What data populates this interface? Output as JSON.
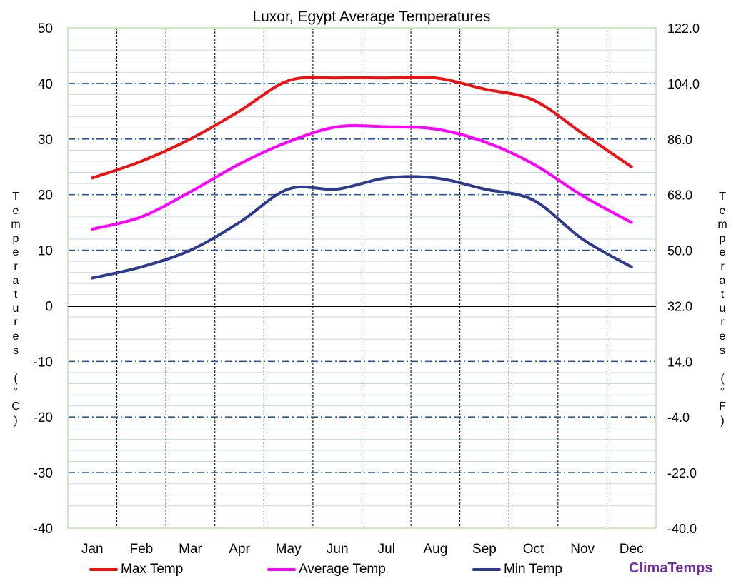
{
  "chart_data": {
    "type": "line",
    "title": "Luxor, Egypt Average  Temperatures",
    "categories": [
      "Jan",
      "Feb",
      "Mar",
      "Apr",
      "May",
      "Jun",
      "Jul",
      "Aug",
      "Sep",
      "Oct",
      "Nov",
      "Dec"
    ],
    "ylabel_left": "Temperatures (°C)",
    "ylabel_right": "Temperatures (°F)",
    "ylim": [
      -40,
      50
    ],
    "y_ticks_left": [
      "50",
      "40",
      "30",
      "20",
      "10",
      "0",
      "-10",
      "-20",
      "-30",
      "-40"
    ],
    "y_ticks_right": [
      "122.0",
      "104.0",
      "86.0",
      "68.0",
      "50.0",
      "32.0",
      "14.0",
      "-4.0",
      "-22.0",
      "-40.0"
    ],
    "grid": true,
    "legend_position": "bottom",
    "series": [
      {
        "name": "Max Temp",
        "color": "#ee1111",
        "values": [
          23,
          26,
          30,
          35,
          40.5,
          41,
          41,
          41,
          39,
          37,
          31,
          25
        ]
      },
      {
        "name": "Average Temp",
        "color": "#ff00ff",
        "values": [
          13.8,
          16,
          20.5,
          25.5,
          29.5,
          32.2,
          32.2,
          31.8,
          29.5,
          25.5,
          19.8,
          15
        ]
      },
      {
        "name": "Min Temp",
        "color": "#2e3a8c",
        "values": [
          5,
          7,
          10,
          15,
          21,
          21,
          23,
          23,
          21,
          19,
          12,
          7
        ]
      }
    ]
  },
  "brand": "ClimaTemps"
}
